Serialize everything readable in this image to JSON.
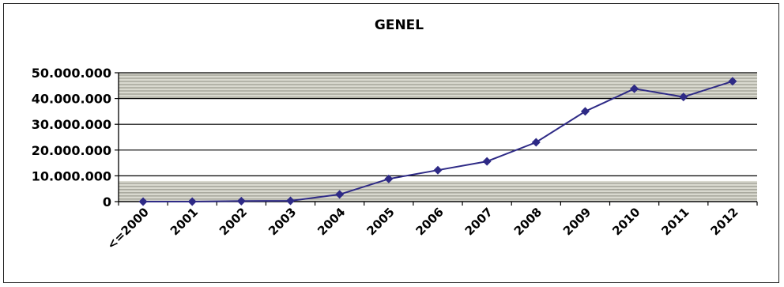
{
  "chart_data": {
    "type": "line",
    "title": "GENEL",
    "xlabel": "",
    "ylabel": "",
    "categories": [
      "<=2000",
      "2001",
      "2002",
      "2003",
      "2004",
      "2005",
      "2006",
      "2007",
      "2008",
      "2009",
      "2010",
      "2011",
      "2012"
    ],
    "series": [
      {
        "values": [
          0,
          0,
          200000,
          300000,
          2800000,
          8800000,
          12200000,
          15600000,
          23000000,
          35000000,
          43800000,
          40600000,
          46700000
        ]
      }
    ],
    "ylim": [
      0,
      50000000
    ],
    "yticks": [
      0,
      10000000,
      20000000,
      30000000,
      40000000,
      50000000
    ],
    "ytick_labels": [
      "0",
      "10.000.000",
      "20.000.000",
      "30.000.000",
      "40.000.000",
      "50.000.000"
    ],
    "grid": true,
    "legend": "none",
    "colors": {
      "line": "#2e2a86",
      "marker": "#2e2a86",
      "plot_background": "#d9d9cf",
      "gridline": "#000000"
    }
  }
}
